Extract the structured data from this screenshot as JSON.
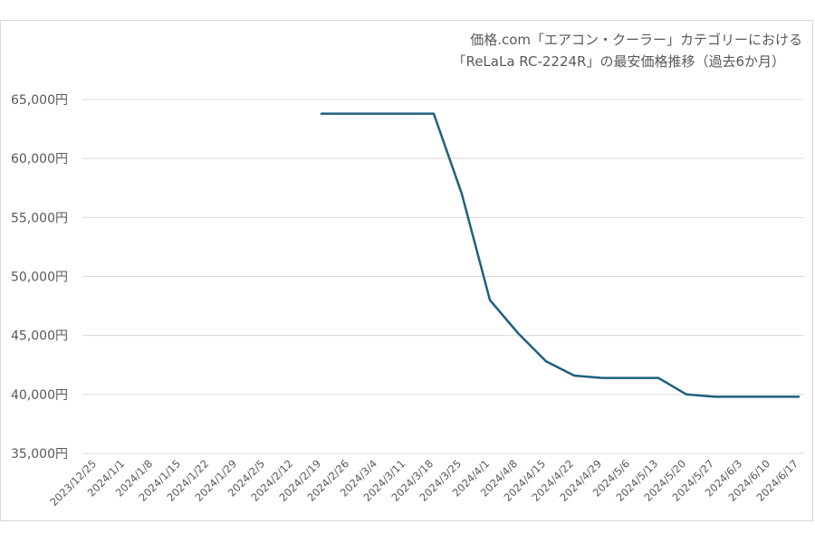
{
  "chart_data": {
    "type": "line",
    "title_lines": [
      "価格.com「エアコン・クーラー」カテゴリーにおける",
      "「ReLaLa RC-2224R」の最安価格推移（過去6か月）"
    ],
    "categories": [
      "2023/12/25",
      "2024/1/1",
      "2024/1/8",
      "2024/1/15",
      "2024/1/22",
      "2024/1/29",
      "2024/2/5",
      "2024/2/12",
      "2024/2/19",
      "2024/2/26",
      "2024/3/4",
      "2024/3/11",
      "2024/3/18",
      "2024/3/25",
      "2024/4/1",
      "2024/4/8",
      "2024/4/15",
      "2024/4/22",
      "2024/4/29",
      "2024/5/6",
      "2024/5/13",
      "2024/5/20",
      "2024/5/27",
      "2024/6/3",
      "2024/6/10",
      "2024/6/17"
    ],
    "y_ticks": [
      "35,000円",
      "40,000円",
      "45,000円",
      "50,000円",
      "55,000円",
      "60,000円",
      "65,000円"
    ],
    "ylim": [
      35000,
      65000
    ],
    "y_tick_step": 5000,
    "grid": true,
    "series": [
      {
        "color": "#1f5f7f",
        "values": [
          null,
          null,
          null,
          null,
          null,
          null,
          null,
          null,
          63800,
          63800,
          63800,
          63800,
          63800,
          57000,
          48000,
          45200,
          42800,
          41600,
          41400,
          41400,
          41400,
          40000,
          39800,
          39800,
          39800,
          39800
        ]
      }
    ]
  }
}
